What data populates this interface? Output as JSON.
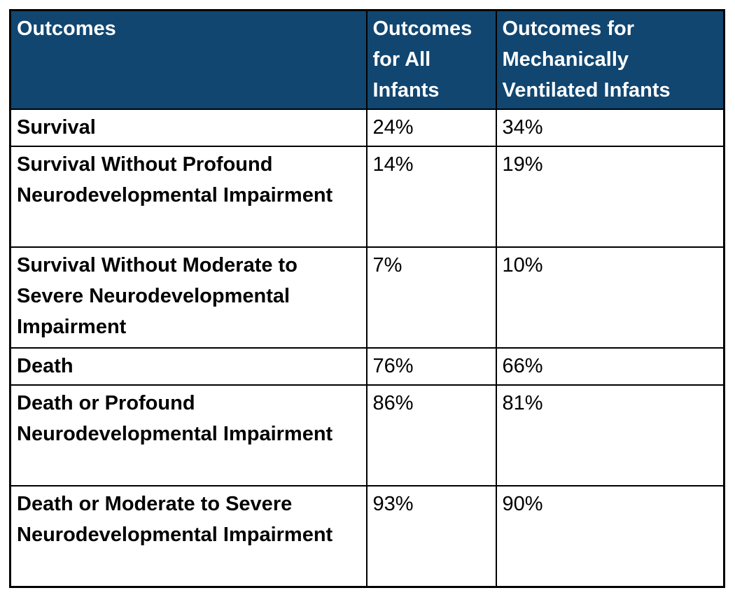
{
  "table": {
    "header": {
      "columns": [
        "Outcomes",
        "Outcomes for All Infants",
        "Outcomes for Mechanically Ventilated Infants"
      ]
    },
    "rows": [
      {
        "label": "Survival",
        "all_infants": "24%",
        "ventilated": "34%"
      },
      {
        "label": "Survival Without Profound Neurodevelopmental Impairment",
        "all_infants": "14%",
        "ventilated": "19%"
      },
      {
        "label": "Survival Without Moderate to Severe Neurodevelopmental Impairment",
        "all_infants": "7%",
        "ventilated": "10%"
      },
      {
        "label": "Death",
        "all_infants": "76%",
        "ventilated": "66%"
      },
      {
        "label": "Death or Profound Neurodevelopmental Impairment",
        "all_infants": "86%",
        "ventilated": "81%"
      },
      {
        "label": "Death or Moderate to Severe Neurodevelopmental Impairment",
        "all_infants": "93%",
        "ventilated": "90%"
      }
    ],
    "colors": {
      "header_background": "#114670",
      "header_text": "#ffffff",
      "body_text": "#000000",
      "border": "#000000",
      "row_background": "#ffffff"
    }
  },
  "chart_data": {
    "type": "table",
    "title": "",
    "columns": [
      "Outcomes",
      "Outcomes for All Infants",
      "Outcomes for Mechanically Ventilated Infants"
    ],
    "categories": [
      "Survival",
      "Survival Without Profound Neurodevelopmental Impairment",
      "Survival Without Moderate to Severe Neurodevelopmental Impairment",
      "Death",
      "Death or Profound Neurodevelopmental Impairment",
      "Death or Moderate to Severe Neurodevelopmental Impairment"
    ],
    "series": [
      {
        "name": "Outcomes for All Infants",
        "values": [
          24,
          14,
          7,
          76,
          86,
          93
        ]
      },
      {
        "name": "Outcomes for Mechanically Ventilated Infants",
        "values": [
          34,
          19,
          10,
          66,
          81,
          90
        ]
      }
    ],
    "rows": [
      [
        "Survival",
        "24%",
        "34%"
      ],
      [
        "Survival Without Profound Neurodevelopmental Impairment",
        "14%",
        "19%"
      ],
      [
        "Survival Without Moderate to Severe Neurodevelopmental Impairment",
        "7%",
        "10%"
      ],
      [
        "Death",
        "76%",
        "66%"
      ],
      [
        "Death or Profound Neurodevelopmental Impairment",
        "86%",
        "81%"
      ],
      [
        "Death or Moderate to Severe Neurodevelopmental Impairment",
        "93%",
        "90%"
      ]
    ]
  }
}
